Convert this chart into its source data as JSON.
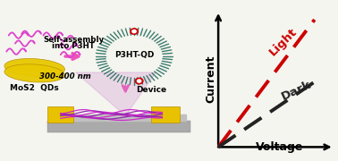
{
  "background_color": "#f5f5f0",
  "light_line_color": "#cc0000",
  "dark_line_color": "#222222",
  "light_label": "Light",
  "dark_label": "Dark",
  "xlabel": "Voltage",
  "ylabel": "Current",
  "light_label_rotation": 45,
  "dark_label_rotation": 25,
  "p3ht_label": "P3HT-QD",
  "device_label": "Device",
  "wavelength_label": "300-400 nm",
  "mos2_label": "MoS2  QDs",
  "arrow_label_1": "Self-assembly",
  "arrow_label_2": "into P3HT"
}
